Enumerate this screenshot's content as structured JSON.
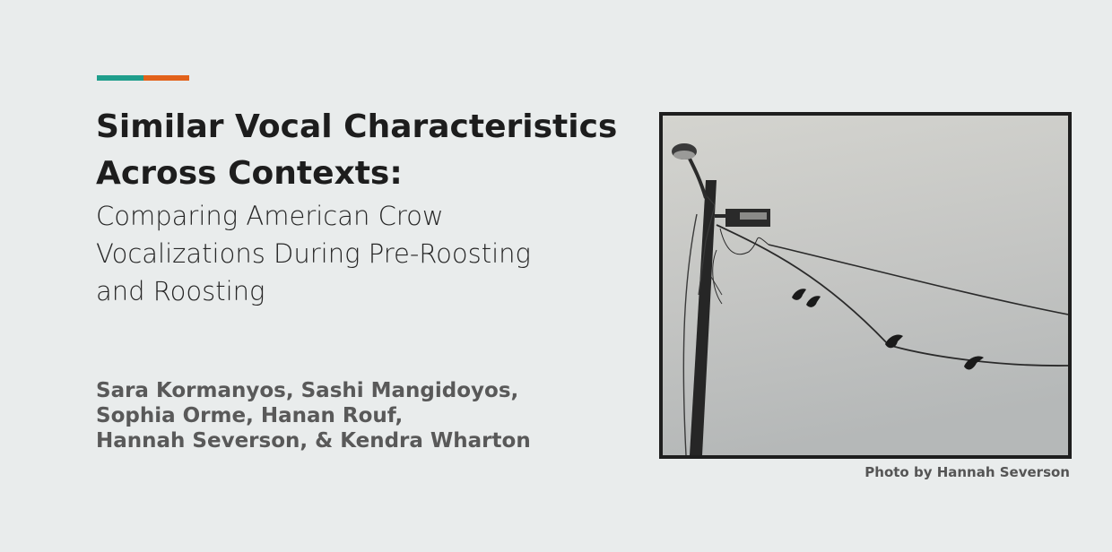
{
  "slide": {
    "title_lines": [
      "Similar Vocal Characteristics",
      "Across Contexts:"
    ],
    "subtitle_lines": [
      "Comparing American Crow",
      "Vocalizations During Pre-Roosting",
      "and Roosting"
    ],
    "author_lines": [
      "Sara Kormanyos, Sashi Mangidoyos,",
      "Sophia Orme, Hanan Rouf,",
      "Hannah Severson, & Kendra Wharton"
    ],
    "photo_caption": "Photo by Hannah Severson",
    "photo_subject": "crows perched on power lines beside a street lamp",
    "colors": {
      "accent_teal": "#1f9e8c",
      "accent_orange": "#e2621b",
      "background": "#e9ecec",
      "frame": "#1e1e1e"
    }
  }
}
